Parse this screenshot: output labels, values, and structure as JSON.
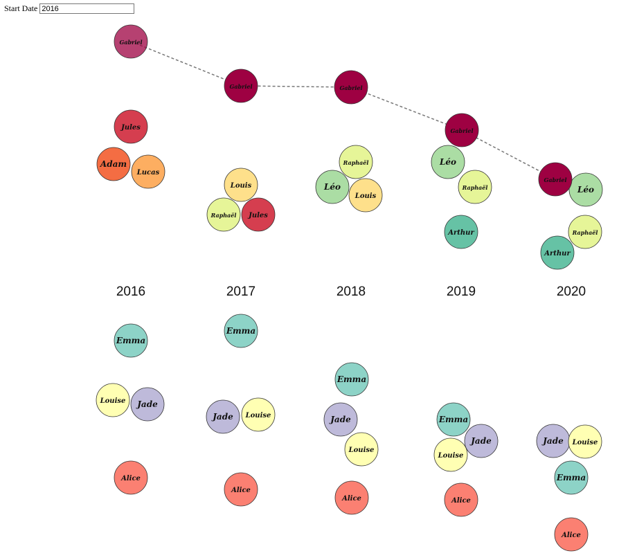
{
  "controls": {
    "start_label": "Start Date",
    "start_value": "2016"
  },
  "chart_data": {
    "type": "scatter",
    "title": "",
    "xlabel": "",
    "ylabel": "",
    "years": [
      "2016",
      "2017",
      "2018",
      "2019",
      "2020"
    ],
    "colors": {
      "Gabriel": "#9e0142",
      "Jules": "#d53e4f",
      "Adam": "#f46d43",
      "Lucas": "#fdae61",
      "Louis": "#fee08b",
      "Raphaël": "#e6f598",
      "Léo": "#abdda4",
      "Arthur": "#66c2a5",
      "Emma": "#8dd3c7",
      "Louise": "#ffffb3",
      "Jade": "#bebada",
      "Alice": "#fb8072"
    },
    "boys": [
      {
        "year": "2016",
        "names": [
          "Gabriel",
          "Jules",
          "Adam",
          "Lucas"
        ]
      },
      {
        "year": "2017",
        "names": [
          "Gabriel",
          "Louis",
          "Raphaël",
          "Jules"
        ]
      },
      {
        "year": "2018",
        "names": [
          "Gabriel",
          "Raphaël",
          "Léo",
          "Louis"
        ]
      },
      {
        "year": "2019",
        "names": [
          "Gabriel",
          "Léo",
          "Raphaël",
          "Arthur"
        ]
      },
      {
        "year": "2020",
        "names": [
          "Léo",
          "Gabriel",
          "Raphaël",
          "Arthur"
        ]
      }
    ],
    "girls": [
      {
        "year": "2016",
        "names": [
          "Emma",
          "Louise",
          "Jade",
          "Alice"
        ]
      },
      {
        "year": "2017",
        "names": [
          "Emma",
          "Jade",
          "Louise",
          "Alice"
        ]
      },
      {
        "year": "2018",
        "names": [
          "Emma",
          "Jade",
          "Louise",
          "Alice"
        ]
      },
      {
        "year": "2019",
        "names": [
          "Emma",
          "Jade",
          "Louise",
          "Alice"
        ]
      },
      {
        "year": "2020",
        "names": [
          "Jade",
          "Louise",
          "Emma",
          "Alice"
        ]
      }
    ],
    "highlighted_name": "Gabriel"
  }
}
